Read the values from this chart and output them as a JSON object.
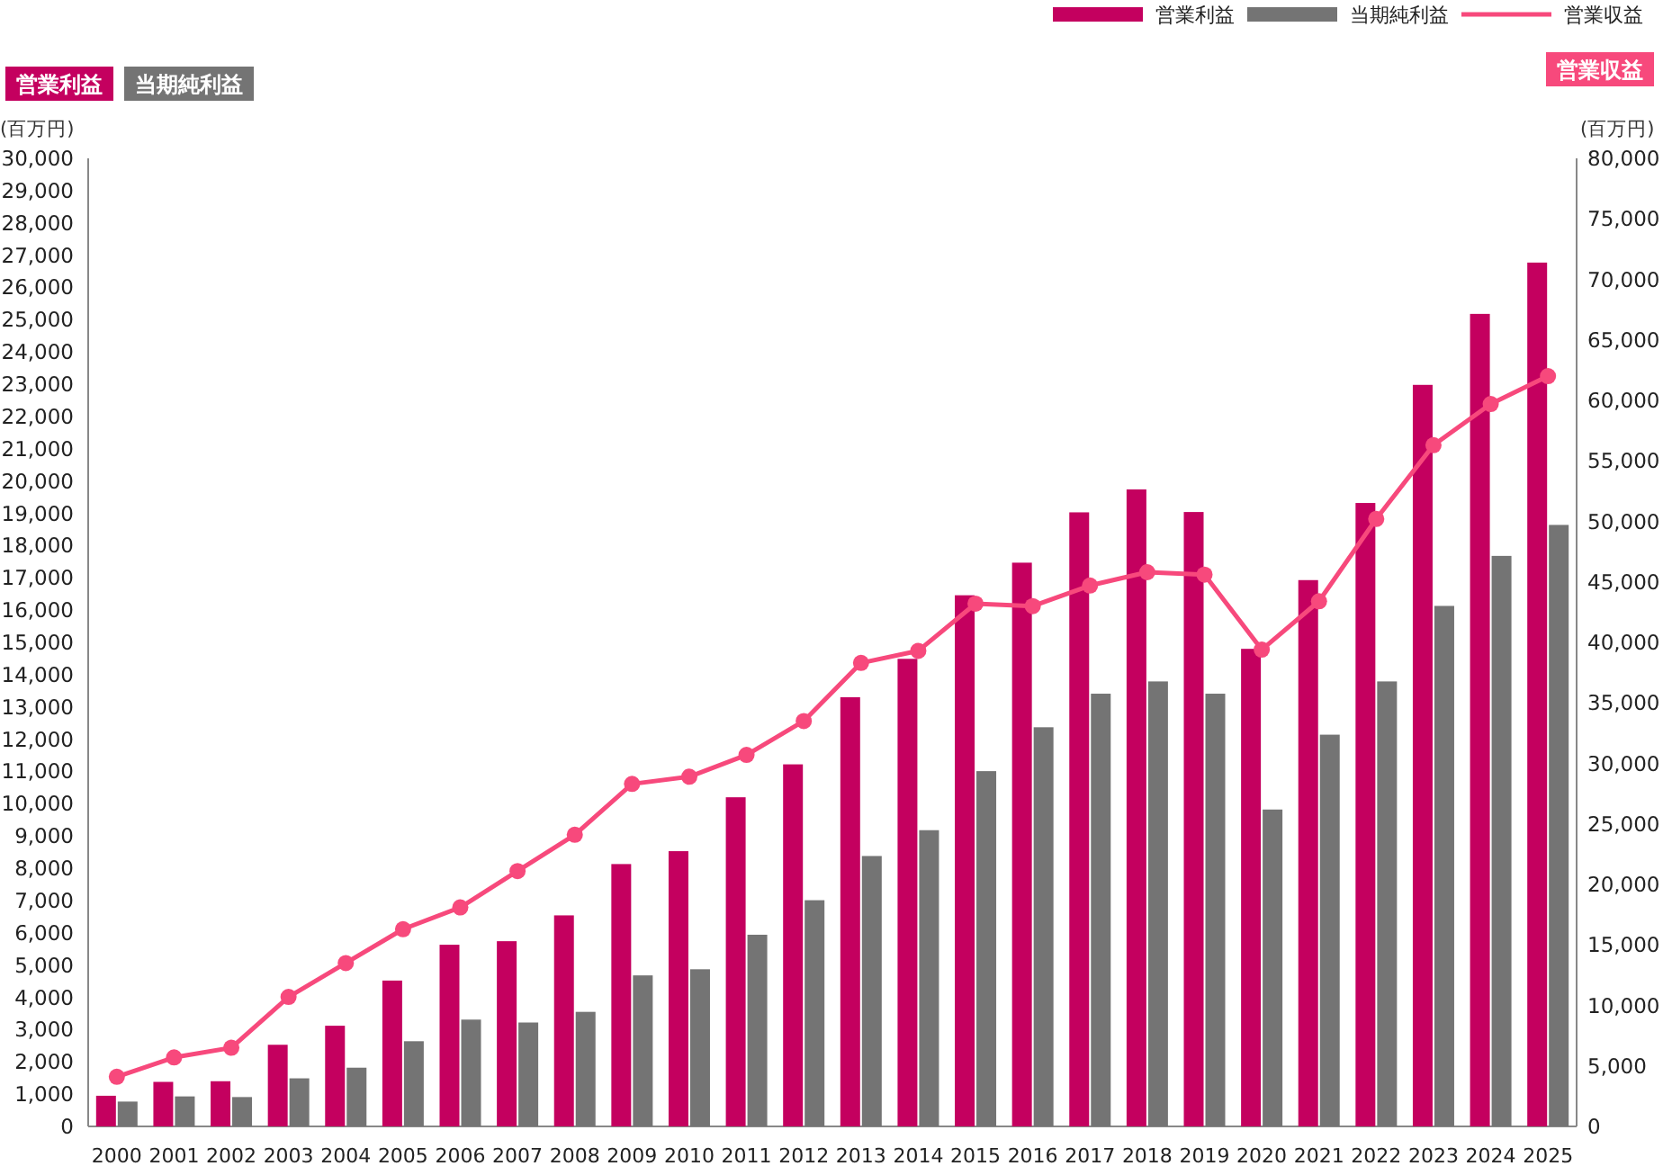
{
  "chart_data": {
    "type": "bar",
    "categories": [
      "2000",
      "2001",
      "2002",
      "2003",
      "2004",
      "2005",
      "2006",
      "2007",
      "2008",
      "2009",
      "2010",
      "2011",
      "2012",
      "2013",
      "2014",
      "2015",
      "2016",
      "2017",
      "2018",
      "2019",
      "2020",
      "2021",
      "2022",
      "2023",
      "2024",
      "2025"
    ],
    "ylabel": "(百万円)",
    "y2label": "(百万円)",
    "annotations": [
      "営業利益",
      "当期純利益",
      "営業収益"
    ],
    "series": [
      {
        "name": "営業利益",
        "color": "#c4005f",
        "values": [
          950,
          1380,
          1400,
          2530,
          3120,
          4520,
          5630,
          5740,
          6540,
          8130,
          8530,
          10200,
          11220,
          13300,
          14490,
          16460,
          17470,
          19030,
          19740,
          19040,
          14800,
          16930,
          19320,
          22980,
          25180,
          26770
        ]
      },
      {
        "name": "当期純利益",
        "color": "#747474",
        "values": [
          770,
          930,
          910,
          1490,
          1820,
          2640,
          3310,
          3220,
          3550,
          4680,
          4870,
          5940,
          7010,
          8380,
          9180,
          11010,
          12370,
          13410,
          13790,
          13410,
          9820,
          12140,
          13790,
          16130,
          17680,
          18640
        ]
      },
      {
        "name": "営業収益",
        "type": "line",
        "axis": "y2",
        "color": "#f7497c",
        "marker": "circle",
        "values": [
          4100,
          5700,
          6500,
          10700,
          13500,
          16300,
          18100,
          21100,
          24100,
          28300,
          28900,
          30700,
          33500,
          38300,
          39300,
          43200,
          43000,
          44700,
          45800,
          45600,
          39400,
          43400,
          50200,
          56300,
          59700,
          62000
        ]
      }
    ],
    "ylim": [
      0,
      30000
    ],
    "yticks": [
      0,
      {
        "value": 1000,
        "label": "1,000"
      },
      {
        "value": 2000,
        "label": "2,000"
      },
      {
        "value": 3000,
        "label": "3,000"
      },
      {
        "value": 4000,
        "label": "4,000"
      },
      {
        "value": 5000,
        "label": "5,000"
      },
      {
        "value": 6000,
        "label": "6,000"
      },
      {
        "value": 7000,
        "label": "7,000"
      },
      {
        "value": 8000,
        "label": "8,000"
      },
      {
        "value": 9000,
        "label": "9,000"
      },
      {
        "value": 10000,
        "label": "10,000"
      },
      {
        "value": 11000,
        "label": "11,000"
      },
      {
        "value": 12000,
        "label": "12,000"
      },
      {
        "value": 13000,
        "label": "13,000"
      },
      {
        "value": 14000,
        "label": "14,000"
      },
      {
        "value": 15000,
        "label": "15,000"
      },
      {
        "value": 16000,
        "label": "16,000"
      },
      {
        "value": 17000,
        "label": "17,000"
      },
      {
        "value": 18000,
        "label": "18,000"
      },
      {
        "value": 19000,
        "label": "19,000"
      },
      {
        "value": 20000,
        "label": "20,000"
      },
      {
        "value": 21000,
        "label": "21,000"
      },
      {
        "value": 22000,
        "label": "22,000"
      },
      {
        "value": 23000,
        "label": "23,000"
      },
      {
        "value": 24000,
        "label": "24,000"
      },
      {
        "value": 25000,
        "label": "25,000"
      },
      {
        "value": 26000,
        "label": "26,000"
      },
      {
        "value": 27000,
        "label": "27,000"
      },
      {
        "value": 28000,
        "label": "28,000"
      },
      {
        "value": 29000,
        "label": "29,000"
      },
      {
        "value": 30000,
        "label": "30,000"
      }
    ],
    "y2lim": [
      0,
      80000
    ],
    "y2ticks": [
      0,
      {
        "value": 5000,
        "label": "5,000"
      },
      {
        "value": 10000,
        "label": "10,000"
      },
      {
        "value": 15000,
        "label": "15,000"
      },
      {
        "value": 20000,
        "label": "20,000"
      },
      {
        "value": 25000,
        "label": "25,000"
      },
      {
        "value": 30000,
        "label": "30,000"
      },
      {
        "value": 35000,
        "label": "35,000"
      },
      {
        "value": 40000,
        "label": "40,000"
      },
      {
        "value": 45000,
        "label": "45,000"
      },
      {
        "value": 50000,
        "label": "50,000"
      },
      {
        "value": 55000,
        "label": "55,000"
      },
      {
        "value": 60000,
        "label": "60,000"
      },
      {
        "value": 65000,
        "label": "65,000"
      },
      {
        "value": 70000,
        "label": "70,000"
      },
      {
        "value": 75000,
        "label": "75,000"
      },
      {
        "value": 80000,
        "label": "80,000"
      }
    ],
    "legend": "top right",
    "grid": false
  }
}
